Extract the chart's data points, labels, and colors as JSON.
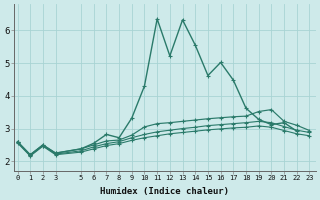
{
  "xlabel": "Humidex (Indice chaleur)",
  "bg_color": "#ceeaea",
  "grid_color": "#a8d4d4",
  "line_color": "#2a7a6a",
  "x_data": [
    0,
    1,
    2,
    3,
    5,
    6,
    7,
    8,
    9,
    10,
    11,
    12,
    13,
    14,
    15,
    16,
    17,
    18,
    19,
    20,
    21,
    22,
    23
  ],
  "line1": [
    2.6,
    2.2,
    2.5,
    2.25,
    2.38,
    2.55,
    2.82,
    2.72,
    3.32,
    4.3,
    6.35,
    5.22,
    6.32,
    5.55,
    4.62,
    5.02,
    4.48,
    3.62,
    3.28,
    3.12,
    3.18,
    2.92,
    null
  ],
  "line2": [
    2.6,
    2.2,
    2.5,
    2.25,
    2.38,
    2.5,
    2.62,
    2.65,
    2.8,
    3.05,
    3.15,
    3.18,
    3.22,
    3.26,
    3.3,
    3.33,
    3.36,
    3.38,
    3.52,
    3.58,
    3.22,
    3.1,
    2.94
  ],
  "line3": [
    2.58,
    2.18,
    2.48,
    2.22,
    2.32,
    2.44,
    2.54,
    2.6,
    2.72,
    2.82,
    2.9,
    2.95,
    3.0,
    3.04,
    3.09,
    3.12,
    3.15,
    3.18,
    3.22,
    3.18,
    3.06,
    2.95,
    2.88
  ],
  "line4": [
    2.56,
    2.16,
    2.46,
    2.2,
    2.28,
    2.38,
    2.48,
    2.54,
    2.64,
    2.72,
    2.78,
    2.84,
    2.88,
    2.92,
    2.96,
    2.99,
    3.02,
    3.04,
    3.08,
    3.04,
    2.94,
    2.84,
    2.78
  ],
  "ylim": [
    1.7,
    6.8
  ],
  "yticks": [
    2,
    3,
    4,
    5,
    6
  ],
  "xticks": [
    0,
    1,
    2,
    3,
    5,
    6,
    7,
    8,
    9,
    10,
    11,
    12,
    13,
    14,
    15,
    16,
    17,
    18,
    19,
    20,
    21,
    22,
    23
  ],
  "xlim": [
    -0.3,
    23.5
  ]
}
